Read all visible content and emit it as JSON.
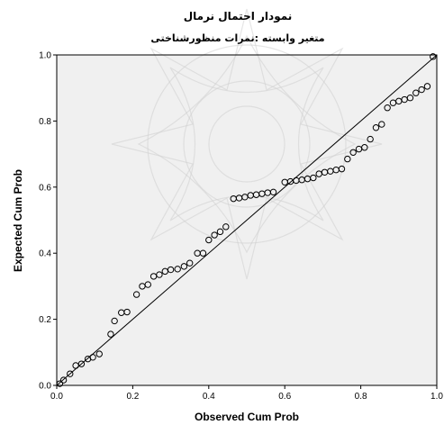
{
  "chart_data": {
    "type": "scatter",
    "title": "نمودار احتمال نرمال",
    "subtitle": "متغیر وابسته :نمرات منظورشناختی",
    "xlabel": "Observed Cum Prob",
    "ylabel": "Expected Cum Prob",
    "xlim": [
      0.0,
      1.0
    ],
    "ylim": [
      0.0,
      1.0
    ],
    "x_ticks": [
      "0.0",
      "0.2",
      "0.4",
      "0.6",
      "0.8",
      "1.0"
    ],
    "y_ticks": [
      "0.0",
      "0.2",
      "0.4",
      "0.6",
      "0.8",
      "1.0"
    ],
    "reference_line": [
      [
        0.0,
        0.0
      ],
      [
        1.0,
        1.0
      ]
    ],
    "grid": false,
    "points": [
      [
        0.008,
        0.005
      ],
      [
        0.018,
        0.016
      ],
      [
        0.035,
        0.035
      ],
      [
        0.05,
        0.06
      ],
      [
        0.065,
        0.065
      ],
      [
        0.082,
        0.08
      ],
      [
        0.095,
        0.085
      ],
      [
        0.112,
        0.095
      ],
      [
        0.142,
        0.155
      ],
      [
        0.152,
        0.195
      ],
      [
        0.17,
        0.22
      ],
      [
        0.185,
        0.222
      ],
      [
        0.21,
        0.275
      ],
      [
        0.225,
        0.3
      ],
      [
        0.24,
        0.305
      ],
      [
        0.255,
        0.33
      ],
      [
        0.27,
        0.335
      ],
      [
        0.285,
        0.345
      ],
      [
        0.3,
        0.35
      ],
      [
        0.318,
        0.352
      ],
      [
        0.335,
        0.36
      ],
      [
        0.35,
        0.37
      ],
      [
        0.37,
        0.4
      ],
      [
        0.385,
        0.4
      ],
      [
        0.4,
        0.44
      ],
      [
        0.415,
        0.455
      ],
      [
        0.43,
        0.465
      ],
      [
        0.445,
        0.48
      ],
      [
        0.465,
        0.565
      ],
      [
        0.48,
        0.567
      ],
      [
        0.495,
        0.57
      ],
      [
        0.51,
        0.575
      ],
      [
        0.525,
        0.577
      ],
      [
        0.54,
        0.58
      ],
      [
        0.555,
        0.583
      ],
      [
        0.57,
        0.585
      ],
      [
        0.6,
        0.615
      ],
      [
        0.615,
        0.617
      ],
      [
        0.63,
        0.62
      ],
      [
        0.645,
        0.622
      ],
      [
        0.66,
        0.625
      ],
      [
        0.675,
        0.628
      ],
      [
        0.69,
        0.64
      ],
      [
        0.705,
        0.645
      ],
      [
        0.72,
        0.648
      ],
      [
        0.735,
        0.652
      ],
      [
        0.75,
        0.655
      ],
      [
        0.765,
        0.685
      ],
      [
        0.78,
        0.705
      ],
      [
        0.795,
        0.715
      ],
      [
        0.81,
        0.72
      ],
      [
        0.825,
        0.745
      ],
      [
        0.84,
        0.78
      ],
      [
        0.855,
        0.79
      ],
      [
        0.87,
        0.84
      ],
      [
        0.885,
        0.855
      ],
      [
        0.9,
        0.86
      ],
      [
        0.915,
        0.865
      ],
      [
        0.93,
        0.87
      ],
      [
        0.945,
        0.885
      ],
      [
        0.96,
        0.895
      ],
      [
        0.975,
        0.905
      ],
      [
        0.99,
        0.995
      ]
    ]
  }
}
